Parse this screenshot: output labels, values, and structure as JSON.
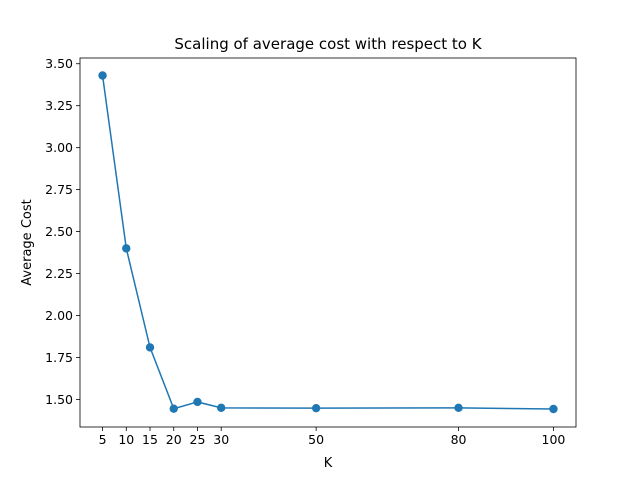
{
  "chart_data": {
    "type": "line",
    "title": "Scaling of average cost with respect to K",
    "xlabel": "K",
    "ylabel": "Average Cost",
    "x": [
      5,
      10,
      15,
      20,
      25,
      30,
      50,
      80,
      100
    ],
    "series": [
      {
        "values": [
          3.43,
          2.4,
          1.81,
          1.445,
          1.485,
          1.45,
          1.448,
          1.45,
          1.443
        ],
        "color": "#1f77b4"
      }
    ],
    "xticks": [
      5,
      10,
      15,
      20,
      25,
      30,
      50,
      80,
      100
    ],
    "yticks": [
      "1.50",
      "1.75",
      "2.00",
      "2.25",
      "2.50",
      "2.75",
      "3.00",
      "3.25",
      "3.50"
    ],
    "xlim": [
      0.25,
      104.75
    ],
    "ylim": [
      1.3358,
      3.5342
    ],
    "grid": false,
    "markers": true
  }
}
